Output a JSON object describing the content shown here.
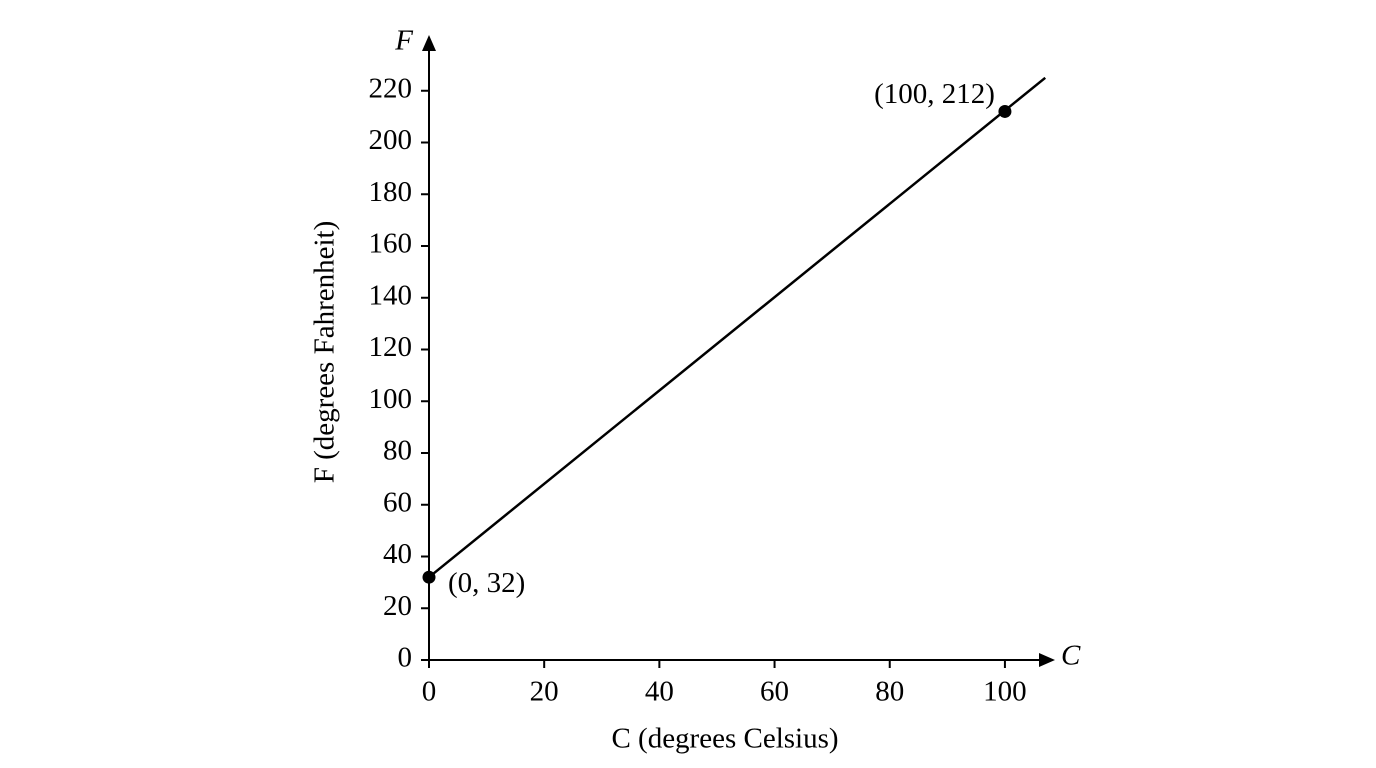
{
  "chart_data": {
    "type": "line",
    "xlabel": "C (degrees Celsius)",
    "ylabel": "F (degrees Fahrenheit)",
    "x_axis_end_label": "C",
    "y_axis_end_label": "F",
    "xlim": [
      0,
      108
    ],
    "ylim": [
      0,
      240
    ],
    "xticks": [
      0,
      20,
      40,
      60,
      80,
      100
    ],
    "yticks": [
      0,
      20,
      40,
      60,
      80,
      100,
      120,
      140,
      160,
      180,
      200,
      220
    ],
    "series": [
      {
        "type": "line",
        "color": "#000000",
        "x": [
          0,
          107
        ],
        "values": [
          32,
          225
        ]
      },
      {
        "type": "scatter",
        "color": "#000000",
        "x": [
          0,
          100
        ],
        "values": [
          32,
          212
        ],
        "value_labels": [
          "(0, 32)",
          "(100, 212)"
        ]
      }
    ]
  }
}
